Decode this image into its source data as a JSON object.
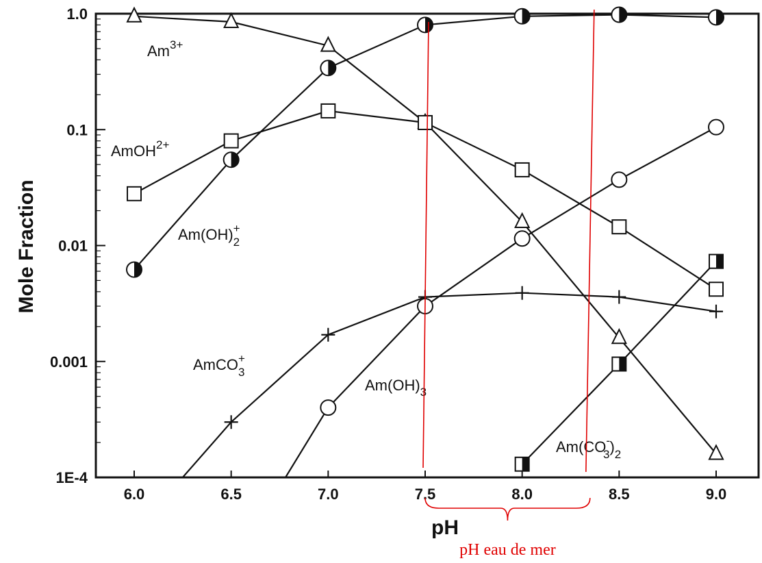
{
  "chart_data": {
    "type": "line",
    "title": "",
    "xlabel": "pH",
    "ylabel": "Mole Fraction",
    "x_scale": "linear",
    "y_scale": "log",
    "xlim": [
      5.8,
      9.2
    ],
    "ylim": [
      0.0001,
      1.0
    ],
    "x_ticks": [
      "6.0",
      "6.5",
      "7.0",
      "7.5",
      "8.0",
      "8.5",
      "9.0"
    ],
    "y_ticks": [
      "1E-4",
      "0.001",
      "0.01",
      "0.1",
      "1.0"
    ],
    "grid": false,
    "legend": "none",
    "series": [
      {
        "id": "am3",
        "label": {
          "base": "Am",
          "sup": "3+",
          "sub": ""
        },
        "marker": "triangle",
        "x": [
          6.0,
          6.5,
          7.0,
          7.5,
          8.0,
          8.5,
          9.0
        ],
        "y": [
          0.95,
          0.85,
          0.53,
          0.115,
          0.016,
          0.0016,
          0.00016
        ]
      },
      {
        "id": "amoh",
        "label": {
          "base": "AmOH",
          "sup": "2+",
          "sub": ""
        },
        "marker": "square",
        "x": [
          6.0,
          6.5,
          7.0,
          7.5,
          8.0,
          8.5,
          9.0
        ],
        "y": [
          0.028,
          0.08,
          0.145,
          0.115,
          0.045,
          0.0145,
          0.0042
        ]
      },
      {
        "id": "amoh2",
        "label": {
          "base": "Am(OH)",
          "sup": "+",
          "sub": "2"
        },
        "marker": "half-circle",
        "x": [
          6.0,
          6.5,
          7.0,
          7.5,
          8.0,
          8.5,
          9.0
        ],
        "y": [
          0.0062,
          0.055,
          0.34,
          0.8,
          0.95,
          0.98,
          0.93
        ]
      },
      {
        "id": "amco3",
        "label": {
          "base": "AmCO",
          "sup": "+",
          "sub": "3"
        },
        "marker": "plus",
        "x": [
          6.25,
          6.5,
          7.0,
          7.5,
          8.0,
          8.5,
          9.0
        ],
        "y": [
          0.0001,
          0.0003,
          0.0017,
          0.0036,
          0.0039,
          0.0036,
          0.0027
        ]
      },
      {
        "id": "amoh3",
        "label": {
          "base": "Am(OH)",
          "sup": "",
          "sub": "3"
        },
        "marker": "circle",
        "x": [
          6.78,
          7.0,
          7.5,
          8.0,
          8.5,
          9.0
        ],
        "y": [
          0.0001,
          0.0004,
          0.003,
          0.0115,
          0.037,
          0.105
        ]
      },
      {
        "id": "amco32",
        "label": {
          "base": "Am(CO",
          "sup": "-",
          "sub": "3",
          "tail": ")",
          "sub2": "2"
        },
        "marker": "half-square",
        "x": [
          8.0,
          8.5,
          9.0
        ],
        "y": [
          0.00013,
          0.00095,
          0.0073
        ]
      }
    ],
    "annotation": {
      "text": "pH eau de mer",
      "color": "#e00000",
      "x_range": [
        7.5,
        8.35
      ]
    }
  }
}
